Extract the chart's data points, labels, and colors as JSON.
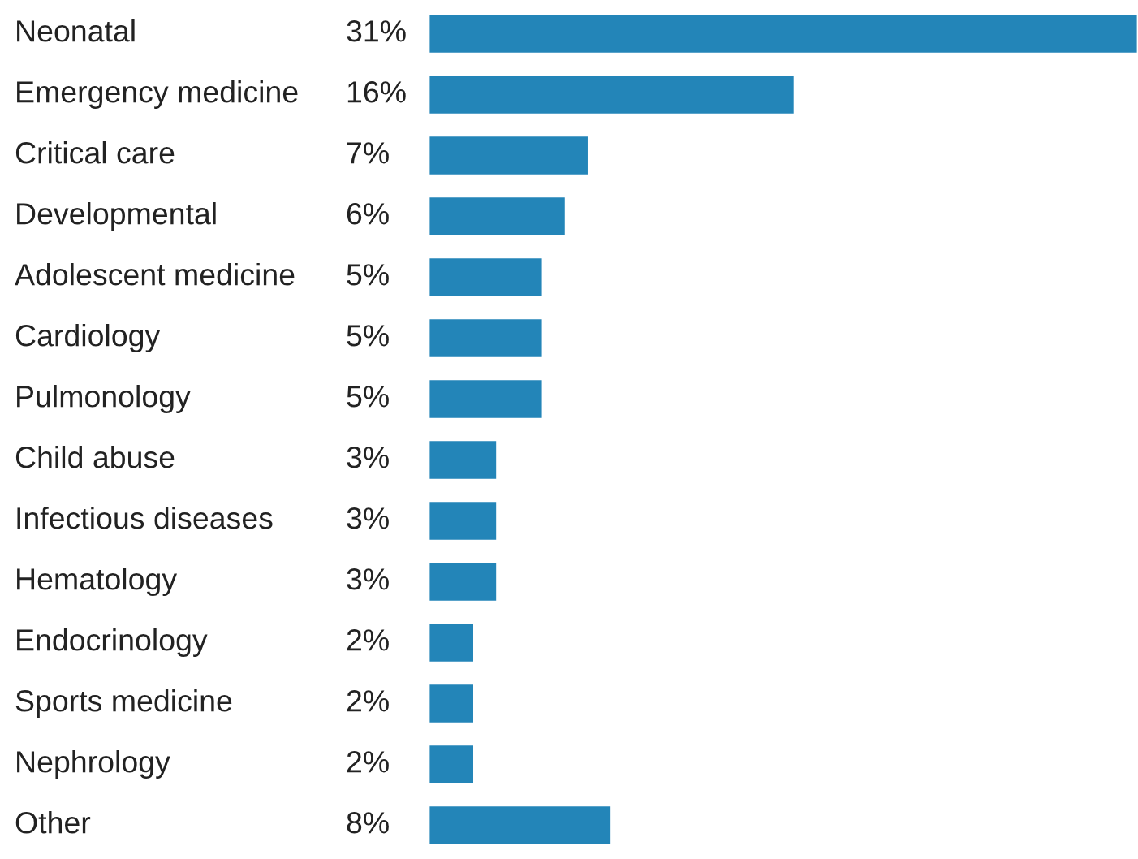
{
  "chart_data": {
    "type": "bar",
    "orientation": "horizontal",
    "categories": [
      "Neonatal",
      "Emergency medicine",
      "Critical care",
      "Developmental",
      "Adolescent medicine",
      "Cardiology",
      "Pulmonology",
      "Child abuse",
      "Infectious diseases",
      "Hematology",
      "Endocrinology",
      "Sports medicine",
      "Nephrology",
      "Other"
    ],
    "values": [
      31,
      16,
      7,
      6,
      5,
      5,
      5,
      3,
      3,
      3,
      2,
      2,
      2,
      8
    ],
    "value_labels": [
      "31%",
      "16%",
      "7%",
      "6%",
      "5%",
      "5%",
      "5%",
      "3%",
      "3%",
      "3%",
      "2%",
      "2%",
      "2%",
      "8%"
    ],
    "color": "#2385b8"
  }
}
